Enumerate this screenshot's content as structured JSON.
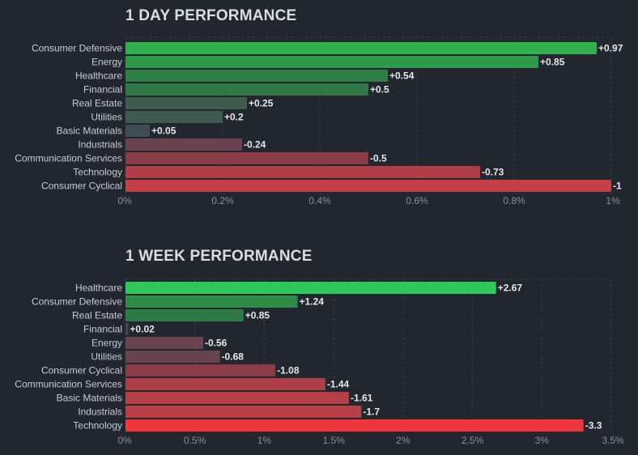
{
  "chart_data": [
    {
      "type": "bar",
      "orientation": "horizontal",
      "title": "1 DAY PERFORMANCE",
      "categories": [
        "Consumer Defensive",
        "Energy",
        "Healthcare",
        "Financial",
        "Real Estate",
        "Utilities",
        "Basic Materials",
        "Industrials",
        "Communication Services",
        "Technology",
        "Consumer Cyclical"
      ],
      "values": [
        0.97,
        0.85,
        0.54,
        0.5,
        0.25,
        0.2,
        0.05,
        -0.24,
        -0.5,
        -0.73,
        -1
      ],
      "value_labels": [
        "+0.97",
        "+0.85",
        "+0.54",
        "+0.5",
        "+0.25",
        "+0.2",
        "+0.05",
        "-0.24",
        "-0.5",
        "-0.73",
        "-1"
      ],
      "bar_colors": [
        "#30b04e",
        "#2e9a48",
        "#2f7e45",
        "#2f7a44",
        "#3e5b4d",
        "#3e5b4d",
        "#3d4d52",
        "#6a4351",
        "#8a3b45",
        "#ae3e47",
        "#c33e46"
      ],
      "xlim": [
        0,
        1
      ],
      "xticks": [
        "0%",
        "0.2%",
        "0.4%",
        "0.6%",
        "0.8%",
        "1%"
      ],
      "xlabel": "",
      "ylabel": "",
      "grid": true
    },
    {
      "type": "bar",
      "orientation": "horizontal",
      "title": "1 WEEK PERFORMANCE",
      "categories": [
        "Healthcare",
        "Consumer Defensive",
        "Real Estate",
        "Financial",
        "Energy",
        "Utilities",
        "Consumer Cyclical",
        "Communication Services",
        "Basic Materials",
        "Industrials",
        "Technology"
      ],
      "values": [
        2.67,
        1.24,
        0.85,
        0.02,
        -0.56,
        -0.68,
        -1.08,
        -1.44,
        -1.61,
        -1.7,
        -3.3
      ],
      "value_labels": [
        "+2.67",
        "+1.24",
        "+0.85",
        "+0.02",
        "-0.56",
        "-0.68",
        "-1.08",
        "-1.44",
        "-1.61",
        "-1.7",
        "-3.3"
      ],
      "bar_colors": [
        "#30c85a",
        "#2f8c46",
        "#2f7a44",
        "#3d4a51",
        "#6a4351",
        "#6a4351",
        "#8a3b45",
        "#ae3e47",
        "#b53e47",
        "#b83e47",
        "#f0353c"
      ],
      "xlim": [
        0,
        3.5
      ],
      "xticks": [
        "0%",
        "0.5%",
        "1%",
        "1.5%",
        "2%",
        "2.5%",
        "3%",
        "3.5%"
      ],
      "xlabel": "",
      "ylabel": "",
      "grid": true
    }
  ]
}
